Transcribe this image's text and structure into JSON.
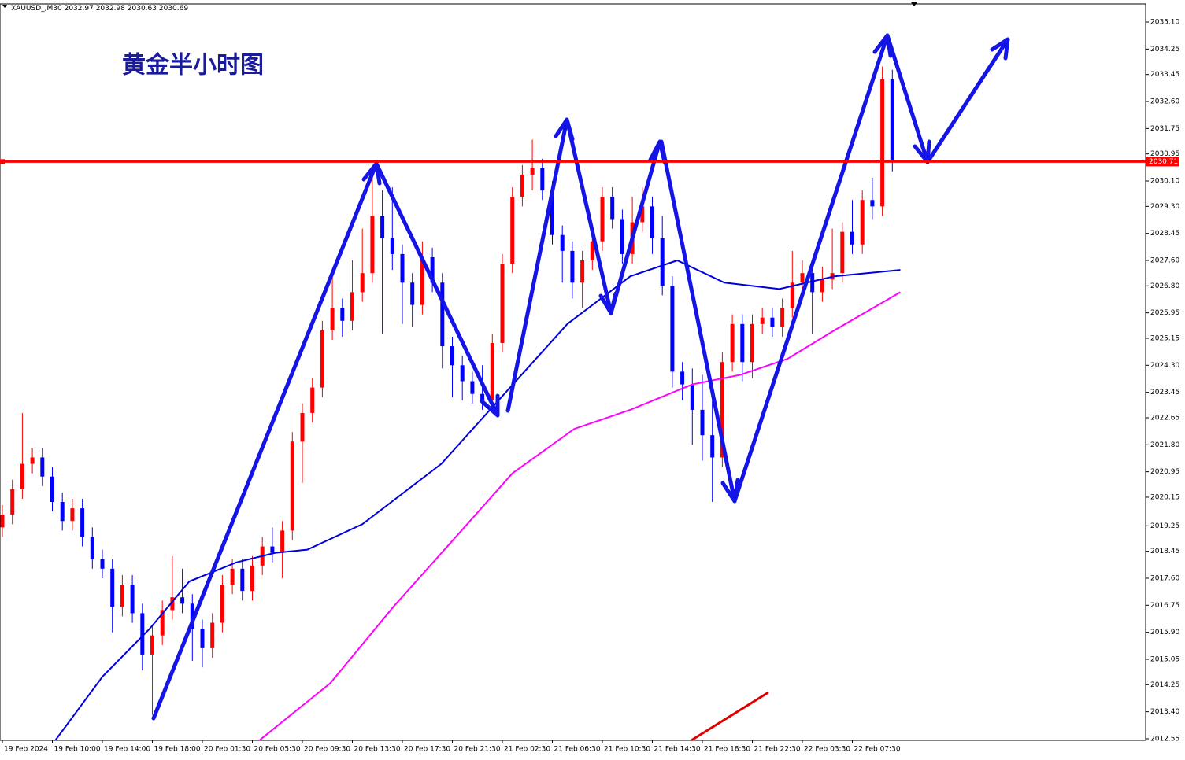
{
  "chart_data": {
    "type": "candlestick",
    "symbol": "XAUUSD_,M30",
    "quote": [
      2032.97,
      2032.98,
      2030.63,
      2030.69
    ],
    "title": "黄金半小时图",
    "categories": [
      "19 Feb 2024",
      null,
      null,
      null,
      null,
      "19 Feb 10:00",
      null,
      null,
      null,
      null,
      "19 Feb 14:00",
      null,
      null,
      null,
      null,
      "19 Feb 18:00",
      null,
      null,
      null,
      null,
      "20 Feb 01:30",
      null,
      null,
      null,
      null,
      "20 Feb 05:30",
      null,
      null,
      null,
      null,
      "20 Feb 09:30",
      null,
      null,
      null,
      null,
      "20 Feb 13:30",
      null,
      null,
      null,
      null,
      "20 Feb 17:30",
      null,
      null,
      null,
      null,
      "20 Feb 21:30",
      null,
      null,
      null,
      null,
      "21 Feb 02:30",
      null,
      null,
      null,
      null,
      "21 Feb 06:30",
      null,
      null,
      null,
      null,
      "21 Feb 10:30",
      null,
      null,
      null,
      null,
      "21 Feb 14:30",
      null,
      null,
      null,
      null,
      "21 Feb 18:30",
      null,
      null,
      null,
      null,
      "21 Feb 22:30",
      null,
      null,
      null,
      null,
      "22 Feb 03:30",
      null,
      null,
      null,
      null,
      "22 Feb 07:30",
      null,
      null,
      null,
      null
    ],
    "open": [
      2019.2,
      2019.6,
      2020.4,
      2021.2,
      2021.4,
      2020.8,
      2020.0,
      2019.4,
      2019.8,
      2018.9,
      2018.2,
      2017.9,
      2016.7,
      2017.4,
      2016.5,
      2015.2,
      2015.8,
      2016.6,
      2017.0,
      2016.8,
      2016.0,
      2015.4,
      2016.2,
      2017.4,
      2017.9,
      2017.2,
      2018.0,
      2018.6,
      2018.4,
      2019.1,
      2021.9,
      2022.8,
      2023.6,
      2025.4,
      2026.1,
      2025.7,
      2026.6,
      2027.2,
      2029.0,
      2028.3,
      2027.8,
      2026.9,
      2026.2,
      2027.7,
      2026.9,
      2024.9,
      2024.3,
      2023.8,
      2023.4,
      2023.2,
      2025.0,
      2027.5,
      2029.6,
      2030.3,
      2030.5,
      2029.8,
      2028.4,
      2027.9,
      2026.9,
      2027.6,
      2028.2,
      2029.6,
      2028.9,
      2027.8,
      2028.8,
      2029.3,
      2028.3,
      2026.8,
      2024.1,
      2023.7,
      2022.9,
      2022.1,
      2021.4,
      2024.4,
      2025.6,
      2024.4,
      2025.6,
      2025.8,
      2025.5,
      2026.1,
      2026.9,
      2027.2,
      2026.6,
      2027.0,
      2027.2,
      2028.5,
      2028.1,
      2029.5,
      2029.3,
      2033.3
    ],
    "high": [
      2019.9,
      2020.7,
      2022.8,
      2021.7,
      2021.7,
      2021.1,
      2020.3,
      2020.1,
      2020.1,
      2019.2,
      2018.5,
      2018.2,
      2017.7,
      2017.7,
      2016.8,
      2016.1,
      2016.9,
      2018.3,
      2017.9,
      2017.1,
      2016.3,
      2016.5,
      2017.7,
      2018.2,
      2018.2,
      2018.3,
      2018.9,
      2019.2,
      2019.4,
      2022.2,
      2023.1,
      2023.9,
      2025.7,
      2027.3,
      2026.4,
      2027.6,
      2028.6,
      2030.2,
      2029.8,
      2029.9,
      2028.1,
      2027.2,
      2028.2,
      2028.0,
      2027.2,
      2025.2,
      2024.6,
      2024.1,
      2024.3,
      2025.3,
      2027.8,
      2029.9,
      2030.6,
      2031.4,
      2030.8,
      2030.1,
      2028.7,
      2028.2,
      2027.9,
      2028.5,
      2029.9,
      2029.9,
      2029.2,
      2029.6,
      2029.9,
      2029.6,
      2029.0,
      2027.1,
      2024.4,
      2024.2,
      2024.0,
      2023.3,
      2024.7,
      2025.9,
      2025.9,
      2025.9,
      2026.1,
      2026.1,
      2026.4,
      2027.9,
      2027.6,
      2027.5,
      2027.4,
      2028.6,
      2028.8,
      2029.5,
      2029.8,
      2030.2,
      2033.7,
      2033.6
    ],
    "low": [
      2018.9,
      2019.3,
      2020.1,
      2020.9,
      2020.5,
      2019.7,
      2019.1,
      2019.1,
      2018.6,
      2017.9,
      2017.6,
      2015.9,
      2016.4,
      2016.2,
      2014.7,
      2013.3,
      2015.5,
      2016.3,
      2016.5,
      2015.0,
      2014.8,
      2015.1,
      2015.9,
      2017.1,
      2016.9,
      2016.9,
      2017.7,
      2018.1,
      2017.6,
      2018.8,
      2020.6,
      2022.5,
      2023.3,
      2025.1,
      2025.2,
      2025.4,
      2026.3,
      2026.9,
      2025.3,
      2027.3,
      2025.6,
      2025.5,
      2025.9,
      2026.6,
      2024.2,
      2023.3,
      2023.2,
      2023.1,
      2022.9,
      2022.9,
      2024.7,
      2027.2,
      2029.3,
      2029.8,
      2029.5,
      2028.1,
      2026.9,
      2026.4,
      2026.1,
      2027.3,
      2027.9,
      2028.6,
      2027.5,
      2027.5,
      2028.5,
      2027.8,
      2026.5,
      2023.6,
      2023.2,
      2021.8,
      2021.3,
      2020.0,
      2021.1,
      2024.1,
      2023.8,
      2023.9,
      2025.3,
      2025.2,
      2025.2,
      2025.8,
      2026.6,
      2025.3,
      2026.3,
      2026.7,
      2026.9,
      2027.8,
      2027.8,
      2028.9,
      2029.0,
      2030.4
    ],
    "close": [
      2019.6,
      2020.4,
      2021.2,
      2021.4,
      2020.8,
      2020.0,
      2019.4,
      2019.8,
      2018.9,
      2018.2,
      2017.9,
      2016.7,
      2017.4,
      2016.5,
      2015.2,
      2015.8,
      2016.6,
      2017.0,
      2016.8,
      2016.0,
      2015.4,
      2016.2,
      2017.4,
      2017.9,
      2017.2,
      2018.0,
      2018.6,
      2018.4,
      2019.1,
      2021.9,
      2022.8,
      2023.6,
      2025.4,
      2026.1,
      2025.7,
      2026.6,
      2027.2,
      2029.0,
      2028.3,
      2027.8,
      2026.9,
      2026.2,
      2027.7,
      2026.9,
      2024.9,
      2024.3,
      2023.8,
      2023.4,
      2023.2,
      2025.0,
      2027.5,
      2029.6,
      2030.3,
      2030.5,
      2029.8,
      2028.4,
      2027.9,
      2026.9,
      2027.6,
      2028.2,
      2029.6,
      2028.9,
      2027.8,
      2028.8,
      2029.3,
      2028.3,
      2026.8,
      2024.1,
      2023.7,
      2022.9,
      2022.1,
      2021.4,
      2024.4,
      2025.6,
      2024.4,
      2025.6,
      2025.8,
      2025.5,
      2026.1,
      2026.9,
      2027.2,
      2026.6,
      2027.0,
      2027.2,
      2028.5,
      2028.1,
      2029.5,
      2029.3,
      2033.3,
      2030.7
    ],
    "up_color": "#ff0000",
    "down_color": "#0000ff",
    "lines": [
      {
        "color": "#0000dd",
        "x": [
          5.3,
          10,
          14.7,
          18.7,
          23.4,
          27.3,
          30.5,
          36,
          43.9,
          50.2,
          56.5,
          62.8,
          67.5,
          72.2,
          77.7,
          83.2,
          89.8
        ],
        "values": [
          2012.5,
          2014.5,
          2016.0,
          2017.5,
          2018.1,
          2018.4,
          2018.5,
          2019.3,
          2021.2,
          2023.4,
          2025.6,
          2027.1,
          2027.6,
          2026.9,
          2026.7,
          2027.1,
          2027.3
        ]
      },
      {
        "color": "#ff00ff",
        "x": [
          25.7,
          32.8,
          39.1,
          46.2,
          51,
          57.2,
          62.8,
          69,
          73.8,
          78.5,
          83.2,
          89.8
        ],
        "values": [
          2012.5,
          2014.3,
          2016.7,
          2019.2,
          2020.9,
          2022.3,
          2022.9,
          2023.7,
          2024.0,
          2024.5,
          2025.4,
          2026.6
        ]
      }
    ],
    "hline": {
      "value": 2030.71,
      "label": "2030.71",
      "color": "#ff0000"
    },
    "ylim": [
      2012.5,
      2035.67
    ],
    "yticks": [
      {
        "value": 2035.1,
        "label": "2035.10"
      },
      2034.25,
      {
        "value": 2033.45,
        "label": "2033.45"
      },
      {
        "value": 2032.6,
        "label": "2032.60"
      },
      2031.75,
      2030.95,
      {
        "value": 2030.1,
        "label": "2030.10"
      },
      {
        "value": 2029.3,
        "label": "2029.30"
      },
      2028.45,
      {
        "value": 2027.6,
        "label": "2027.60"
      },
      {
        "value": 2026.8,
        "label": "2026.80"
      },
      2025.95,
      2025.15,
      {
        "value": 2024.3,
        "label": "2024.30"
      },
      2023.45,
      2022.65,
      {
        "value": 2021.8,
        "label": "2021.80"
      },
      2020.95,
      2020.15,
      2019.25,
      2018.45,
      {
        "value": 2017.6,
        "label": "2017.60"
      },
      2016.75,
      {
        "value": 2015.9,
        "label": "2015.90"
      },
      2015.05,
      2014.25,
      {
        "value": 2013.4,
        "label": "2013.40"
      },
      2012.55
    ]
  }
}
